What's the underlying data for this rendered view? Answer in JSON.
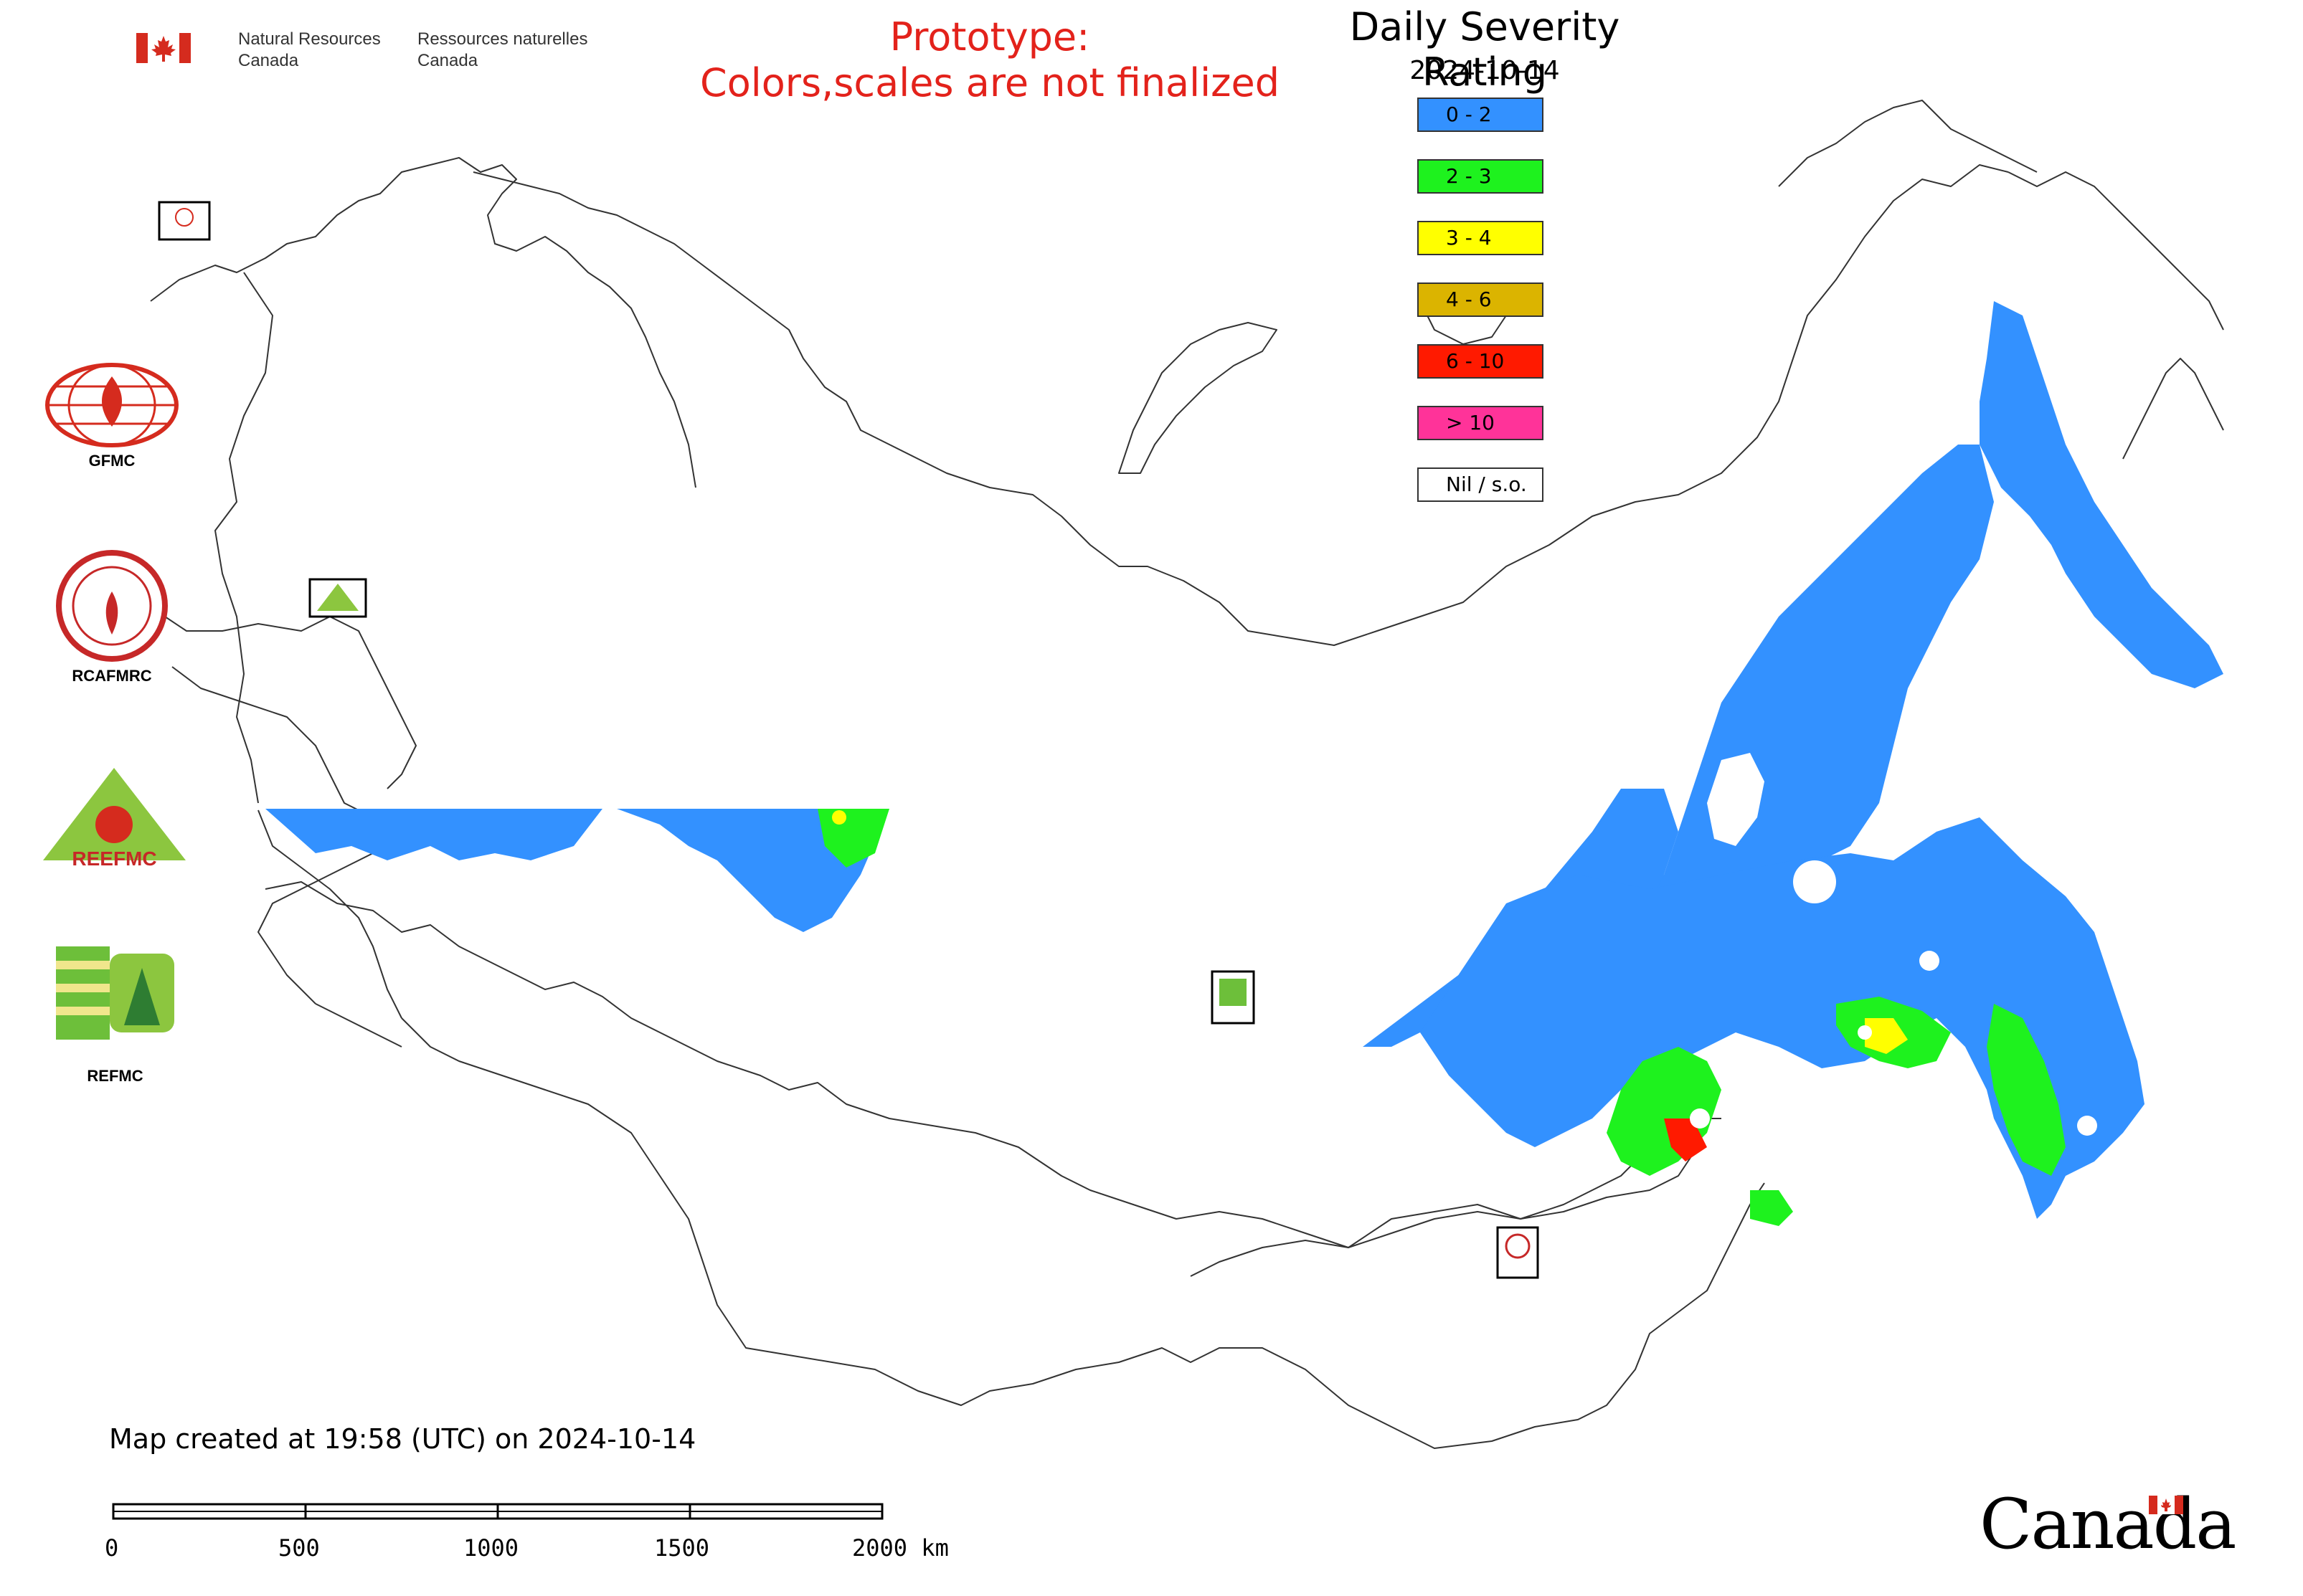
{
  "header": {
    "dept_en_1": "Natural Resources",
    "dept_en_2": "Canada",
    "dept_fr_1": "Ressources naturelles",
    "dept_fr_2": "Canada"
  },
  "notice": {
    "line1": "Prototype:",
    "line2": "Colors,scales are not finalized",
    "color": "#e3221b"
  },
  "legend": {
    "title": "Daily Severity Rating",
    "date": "2024-10-14",
    "items": [
      {
        "label": "0 - 2",
        "color": "#3391ff"
      },
      {
        "label": "2 - 3",
        "color": "#1ef21e"
      },
      {
        "label": "3 - 4",
        "color": "#ffff00"
      },
      {
        "label": "4 - 6",
        "color": "#dbb400"
      },
      {
        "label": "6 - 10",
        "color": "#ff1a00"
      },
      {
        "label": "> 10",
        "color": "#ff3399"
      },
      {
        "label": "Nil / s.o.",
        "color": "#ffffff"
      }
    ]
  },
  "logos": {
    "gfmc": "GFMC",
    "rcafmrc": "RCAFMRC",
    "reefmc": "REEFMC",
    "refmc": "REFMC",
    "reefmc_word": "REEFMC",
    "rcafmrc_badge": "RCAFMRC"
  },
  "map_markers": [
    {
      "name": "gfmc-marker",
      "label": "GFMC"
    },
    {
      "name": "reefmc-marker",
      "label": "REEFMC"
    },
    {
      "name": "refmc-marker",
      "label": "REFMC"
    },
    {
      "name": "rcafmrc-marker",
      "label": "RCAFMRC"
    }
  ],
  "footer": {
    "created": "Map created at 19:58 (UTC) on 2024-10-14",
    "scale_labels": [
      "0",
      "500",
      "1000",
      "1500",
      "2000 km"
    ],
    "wordmark": "Canada"
  }
}
